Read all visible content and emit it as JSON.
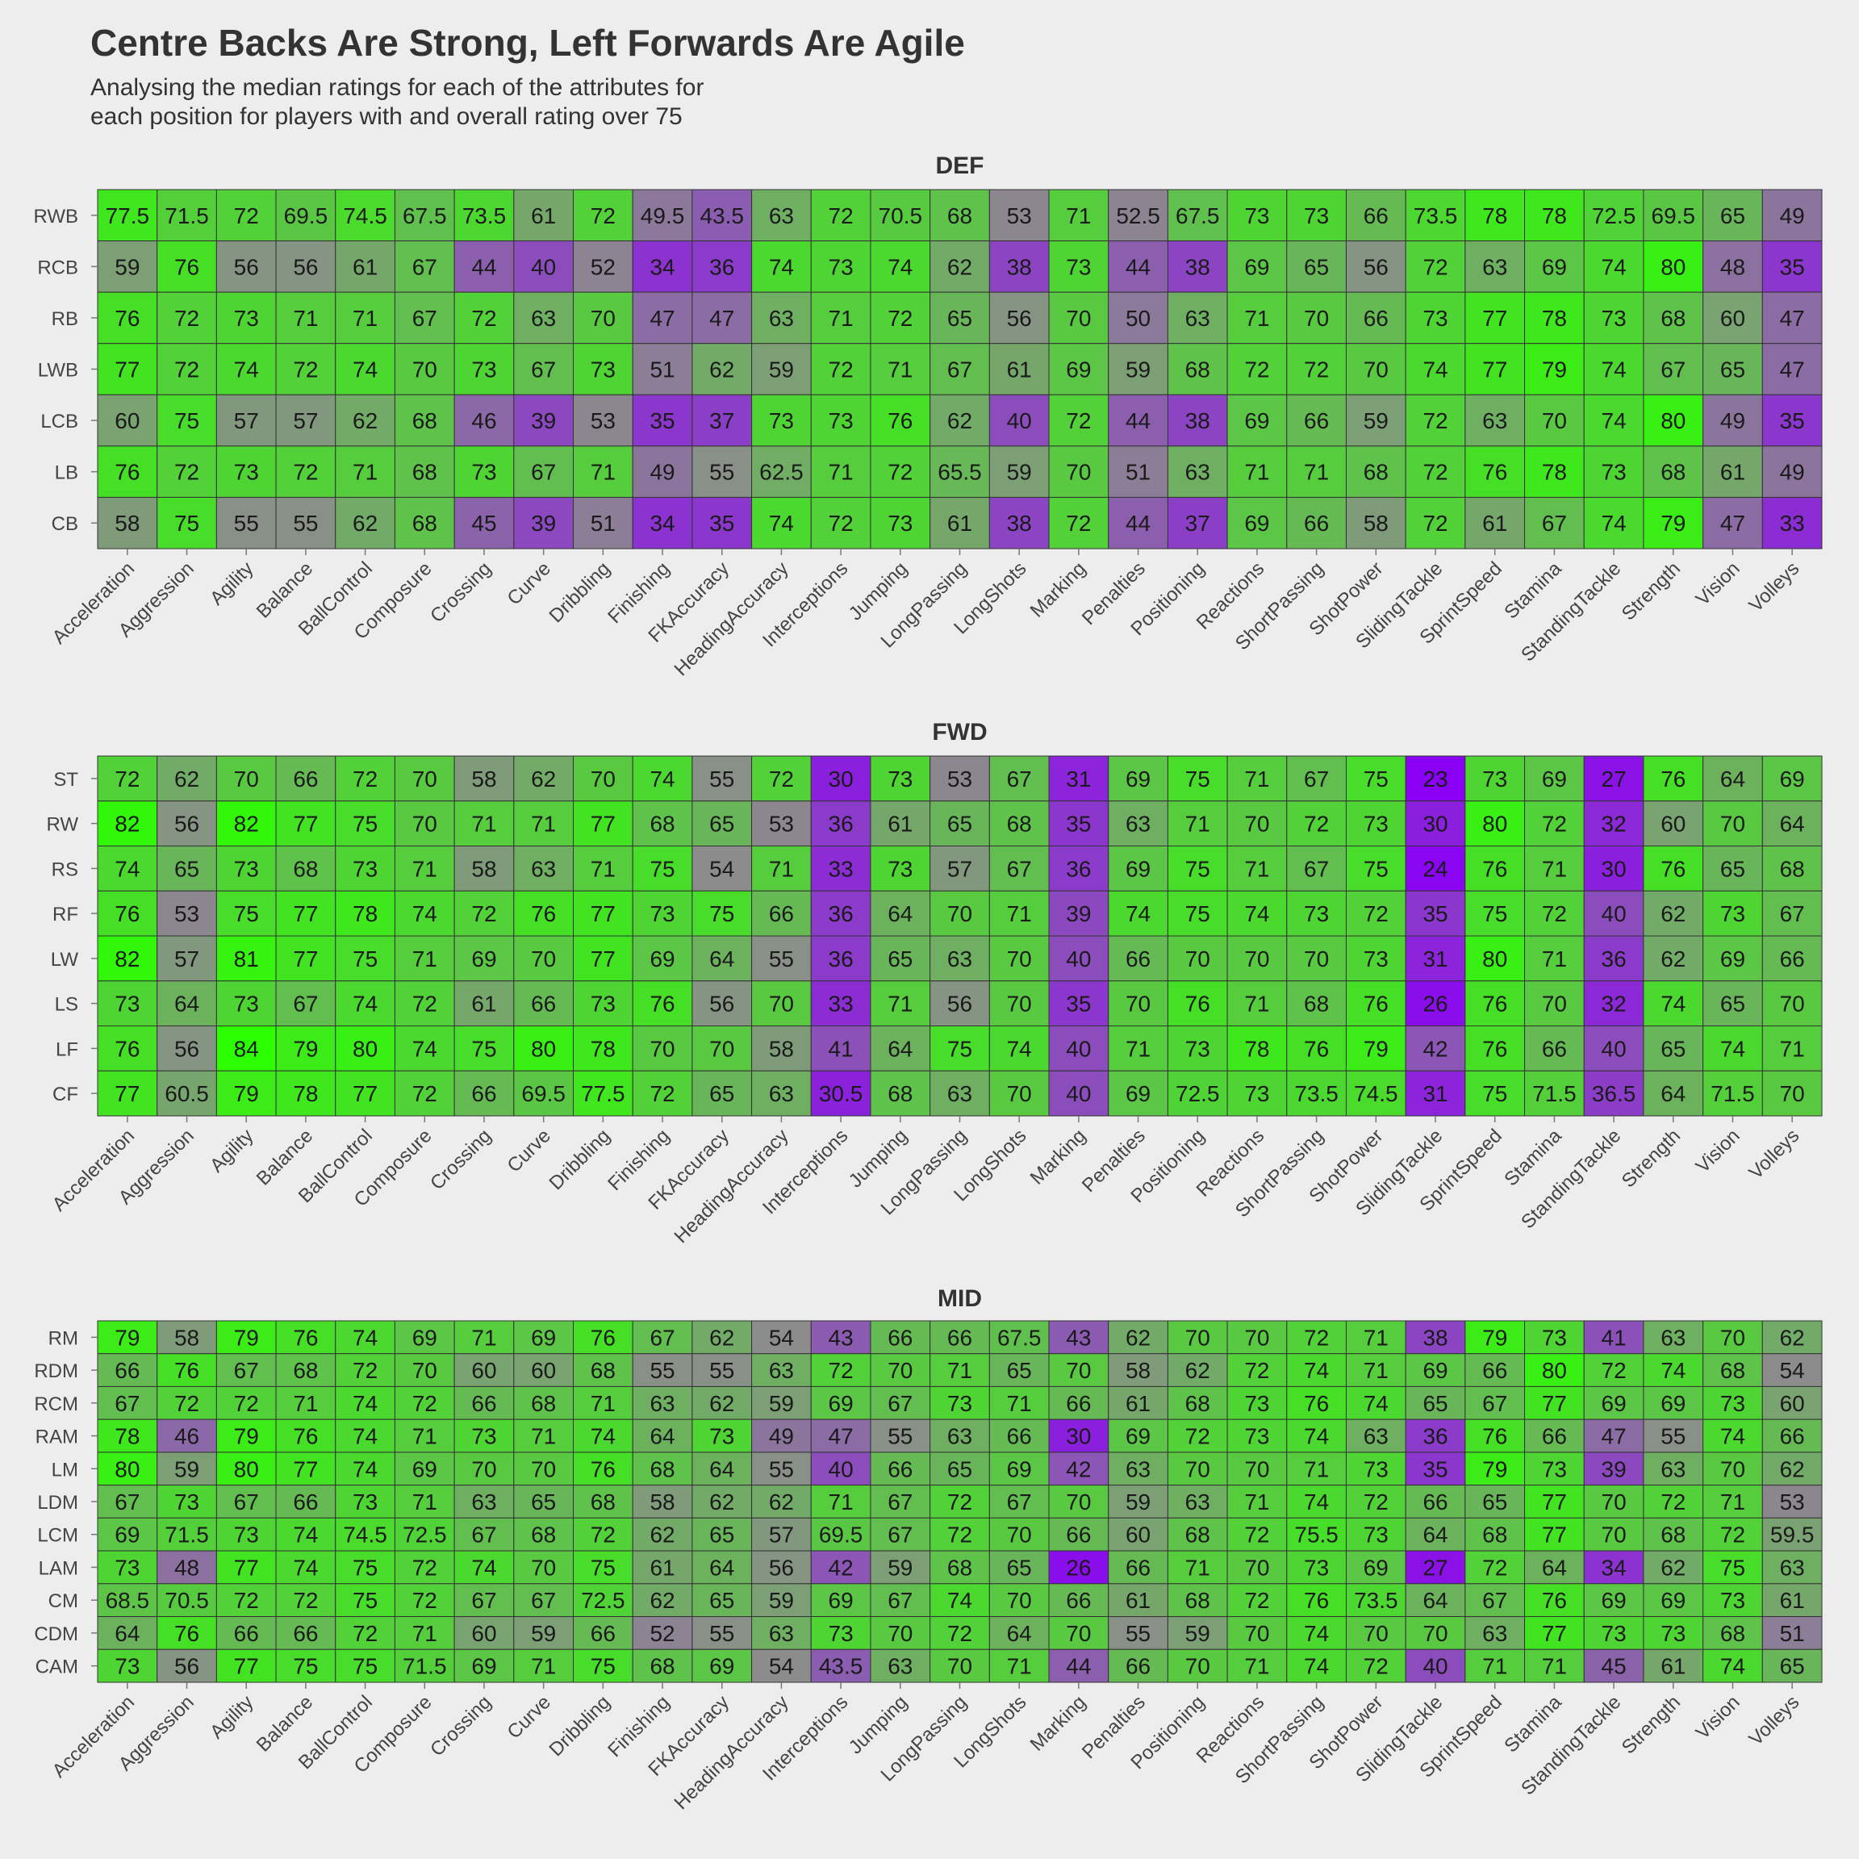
{
  "title": "Centre Backs Are Strong, Left Forwards Are Agile",
  "subtitle_lines": [
    "Analysing the median ratings for each of the attributes for",
    "each position for players with and overall rating over 75"
  ],
  "chart_data": {
    "type": "heatmap",
    "color_scale": {
      "low": "#8a00f5",
      "mid": "#8c8c8c",
      "high": "#2bff00",
      "domain": [
        23,
        54,
        84
      ]
    },
    "attributes": [
      "Acceleration",
      "Aggression",
      "Agility",
      "Balance",
      "BallControl",
      "Composure",
      "Crossing",
      "Curve",
      "Dribbling",
      "Finishing",
      "FKAccuracy",
      "HeadingAccuracy",
      "Interceptions",
      "Jumping",
      "LongPassing",
      "LongShots",
      "Marking",
      "Penalties",
      "Positioning",
      "Reactions",
      "ShortPassing",
      "ShotPower",
      "SlidingTackle",
      "SprintSpeed",
      "Stamina",
      "StandingTackle",
      "Strength",
      "Vision",
      "Volleys"
    ],
    "panels": [
      {
        "name": "DEF",
        "positions": [
          "RWB",
          "RCB",
          "RB",
          "LWB",
          "LCB",
          "LB",
          "CB"
        ],
        "values": [
          [
            "77.5",
            "71.5",
            "72",
            "69.5",
            "74.5",
            "67.5",
            "73.5",
            "61",
            "72",
            "49.5",
            "43.5",
            "63",
            "72",
            "70.5",
            "68",
            "53",
            "71",
            "52.5",
            "67.5",
            "73",
            "73",
            "66",
            "73.5",
            "78",
            "78",
            "72.5",
            "69.5",
            "65",
            "49"
          ],
          [
            "59",
            "76",
            "56",
            "56",
            "61",
            "67",
            "44",
            "40",
            "52",
            "34",
            "36",
            "74",
            "73",
            "74",
            "62",
            "38",
            "73",
            "44",
            "38",
            "69",
            "65",
            "56",
            "72",
            "63",
            "69",
            "74",
            "80",
            "48",
            "35"
          ],
          [
            "76",
            "72",
            "73",
            "71",
            "71",
            "67",
            "72",
            "63",
            "70",
            "47",
            "47",
            "63",
            "71",
            "72",
            "65",
            "56",
            "70",
            "50",
            "63",
            "71",
            "70",
            "66",
            "73",
            "77",
            "78",
            "73",
            "68",
            "60",
            "47"
          ],
          [
            "77",
            "72",
            "74",
            "72",
            "74",
            "70",
            "73",
            "67",
            "73",
            "51",
            "62",
            "59",
            "72",
            "71",
            "67",
            "61",
            "69",
            "59",
            "68",
            "72",
            "72",
            "70",
            "74",
            "77",
            "79",
            "74",
            "67",
            "65",
            "47"
          ],
          [
            "60",
            "75",
            "57",
            "57",
            "62",
            "68",
            "46",
            "39",
            "53",
            "35",
            "37",
            "73",
            "73",
            "76",
            "62",
            "40",
            "72",
            "44",
            "38",
            "69",
            "66",
            "59",
            "72",
            "63",
            "70",
            "74",
            "80",
            "49",
            "35"
          ],
          [
            "76",
            "72",
            "73",
            "72",
            "71",
            "68",
            "73",
            "67",
            "71",
            "49",
            "55",
            "62.5",
            "71",
            "72",
            "65.5",
            "59",
            "70",
            "51",
            "63",
            "71",
            "71",
            "68",
            "72",
            "76",
            "78",
            "73",
            "68",
            "61",
            "49"
          ],
          [
            "58",
            "75",
            "55",
            "55",
            "62",
            "68",
            "45",
            "39",
            "51",
            "34",
            "35",
            "74",
            "72",
            "73",
            "61",
            "38",
            "72",
            "44",
            "37",
            "69",
            "66",
            "58",
            "72",
            "61",
            "67",
            "74",
            "79",
            "47",
            "33"
          ]
        ]
      },
      {
        "name": "FWD",
        "positions": [
          "ST",
          "RW",
          "RS",
          "RF",
          "LW",
          "LS",
          "LF",
          "CF"
        ],
        "values": [
          [
            "72",
            "62",
            "70",
            "66",
            "72",
            "70",
            "58",
            "62",
            "70",
            "74",
            "55",
            "72",
            "30",
            "73",
            "53",
            "67",
            "31",
            "69",
            "75",
            "71",
            "67",
            "75",
            "23",
            "73",
            "69",
            "27",
            "76",
            "64",
            "69"
          ],
          [
            "82",
            "56",
            "82",
            "77",
            "75",
            "70",
            "71",
            "71",
            "77",
            "68",
            "65",
            "53",
            "36",
            "61",
            "65",
            "68",
            "35",
            "63",
            "71",
            "70",
            "72",
            "73",
            "30",
            "80",
            "72",
            "32",
            "60",
            "70",
            "64"
          ],
          [
            "74",
            "65",
            "73",
            "68",
            "73",
            "71",
            "58",
            "63",
            "71",
            "75",
            "54",
            "71",
            "33",
            "73",
            "57",
            "67",
            "36",
            "69",
            "75",
            "71",
            "67",
            "75",
            "24",
            "76",
            "71",
            "30",
            "76",
            "65",
            "68"
          ],
          [
            "76",
            "53",
            "75",
            "77",
            "78",
            "74",
            "72",
            "76",
            "77",
            "73",
            "75",
            "66",
            "36",
            "64",
            "70",
            "71",
            "39",
            "74",
            "75",
            "74",
            "73",
            "72",
            "35",
            "75",
            "72",
            "40",
            "62",
            "73",
            "67"
          ],
          [
            "82",
            "57",
            "81",
            "77",
            "75",
            "71",
            "69",
            "70",
            "77",
            "69",
            "64",
            "55",
            "36",
            "65",
            "63",
            "70",
            "40",
            "66",
            "70",
            "70",
            "70",
            "73",
            "31",
            "80",
            "71",
            "36",
            "62",
            "69",
            "66"
          ],
          [
            "73",
            "64",
            "73",
            "67",
            "74",
            "72",
            "61",
            "66",
            "73",
            "76",
            "56",
            "70",
            "33",
            "71",
            "56",
            "70",
            "35",
            "70",
            "76",
            "71",
            "68",
            "76",
            "26",
            "76",
            "70",
            "32",
            "74",
            "65",
            "70"
          ],
          [
            "76",
            "56",
            "84",
            "79",
            "80",
            "74",
            "75",
            "80",
            "78",
            "70",
            "70",
            "58",
            "41",
            "64",
            "75",
            "74",
            "40",
            "71",
            "73",
            "78",
            "76",
            "79",
            "42",
            "76",
            "66",
            "40",
            "65",
            "74",
            "71"
          ],
          [
            "77",
            "60.5",
            "79",
            "78",
            "77",
            "72",
            "66",
            "69.5",
            "77.5",
            "72",
            "65",
            "63",
            "30.5",
            "68",
            "63",
            "70",
            "40",
            "69",
            "72.5",
            "73",
            "73.5",
            "74.5",
            "31",
            "75",
            "71.5",
            "36.5",
            "64",
            "71.5",
            "70"
          ]
        ]
      },
      {
        "name": "MID",
        "positions": [
          "RM",
          "RDM",
          "RCM",
          "RAM",
          "LM",
          "LDM",
          "LCM",
          "LAM",
          "CM",
          "CDM",
          "CAM"
        ],
        "values": [
          [
            "79",
            "58",
            "79",
            "76",
            "74",
            "69",
            "71",
            "69",
            "76",
            "67",
            "62",
            "54",
            "43",
            "66",
            "66",
            "67.5",
            "43",
            "62",
            "70",
            "70",
            "72",
            "71",
            "38",
            "79",
            "73",
            "41",
            "63",
            "70",
            "62"
          ],
          [
            "66",
            "76",
            "67",
            "68",
            "72",
            "70",
            "60",
            "60",
            "68",
            "55",
            "55",
            "63",
            "72",
            "70",
            "71",
            "65",
            "70",
            "58",
            "62",
            "72",
            "74",
            "71",
            "69",
            "66",
            "80",
            "72",
            "74",
            "68",
            "54"
          ],
          [
            "67",
            "72",
            "72",
            "71",
            "74",
            "72",
            "66",
            "68",
            "71",
            "63",
            "62",
            "59",
            "69",
            "67",
            "73",
            "71",
            "66",
            "61",
            "68",
            "73",
            "76",
            "74",
            "65",
            "67",
            "77",
            "69",
            "69",
            "73",
            "60"
          ],
          [
            "78",
            "46",
            "79",
            "76",
            "74",
            "71",
            "73",
            "71",
            "74",
            "64",
            "73",
            "49",
            "47",
            "55",
            "63",
            "66",
            "30",
            "69",
            "72",
            "73",
            "74",
            "63",
            "36",
            "76",
            "66",
            "47",
            "55",
            "74",
            "66"
          ],
          [
            "80",
            "59",
            "80",
            "77",
            "74",
            "69",
            "70",
            "70",
            "76",
            "68",
            "64",
            "55",
            "40",
            "66",
            "65",
            "69",
            "42",
            "63",
            "70",
            "70",
            "71",
            "73",
            "35",
            "79",
            "73",
            "39",
            "63",
            "70",
            "62"
          ],
          [
            "67",
            "73",
            "67",
            "66",
            "73",
            "71",
            "63",
            "65",
            "68",
            "58",
            "62",
            "62",
            "71",
            "67",
            "72",
            "67",
            "70",
            "59",
            "63",
            "71",
            "74",
            "72",
            "66",
            "65",
            "77",
            "70",
            "72",
            "71",
            "53"
          ],
          [
            "69",
            "71.5",
            "73",
            "74",
            "74.5",
            "72.5",
            "67",
            "68",
            "72",
            "62",
            "65",
            "57",
            "69.5",
            "67",
            "72",
            "70",
            "66",
            "60",
            "68",
            "72",
            "75.5",
            "73",
            "64",
            "68",
            "77",
            "70",
            "68",
            "72",
            "59.5"
          ],
          [
            "73",
            "48",
            "77",
            "74",
            "75",
            "72",
            "74",
            "70",
            "75",
            "61",
            "64",
            "56",
            "42",
            "59",
            "68",
            "65",
            "26",
            "66",
            "71",
            "70",
            "73",
            "69",
            "27",
            "72",
            "64",
            "34",
            "62",
            "75",
            "63"
          ],
          [
            "68.5",
            "70.5",
            "72",
            "72",
            "75",
            "72",
            "67",
            "67",
            "72.5",
            "62",
            "65",
            "59",
            "69",
            "67",
            "74",
            "70",
            "66",
            "61",
            "68",
            "72",
            "76",
            "73.5",
            "64",
            "67",
            "76",
            "69",
            "69",
            "73",
            "61"
          ],
          [
            "64",
            "76",
            "66",
            "66",
            "72",
            "71",
            "60",
            "59",
            "66",
            "52",
            "55",
            "63",
            "73",
            "70",
            "72",
            "64",
            "70",
            "55",
            "59",
            "70",
            "74",
            "70",
            "70",
            "63",
            "77",
            "73",
            "73",
            "68",
            "51"
          ],
          [
            "73",
            "56",
            "77",
            "75",
            "75",
            "71.5",
            "69",
            "71",
            "75",
            "68",
            "69",
            "54",
            "43.5",
            "63",
            "70",
            "71",
            "44",
            "66",
            "70",
            "71",
            "74",
            "72",
            "40",
            "71",
            "71",
            "45",
            "61",
            "74",
            "65"
          ]
        ]
      }
    ]
  }
}
